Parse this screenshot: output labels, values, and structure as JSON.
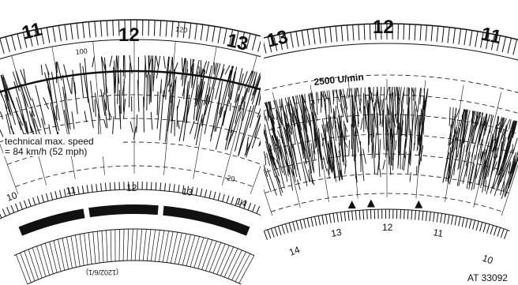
{
  "left_panel": {
    "top_hours": [
      "11",
      "12",
      "13"
    ],
    "speed_labels": [
      "100",
      "120",
      "20"
    ],
    "note": [
      "technical max. speed",
      "= 84 km/h (52 mph)"
    ],
    "lower_hours": [
      "10",
      "11",
      "12",
      "13",
      "14"
    ],
    "serial": "(1202/6/1)"
  },
  "right_panel": {
    "top_hours": [
      "13",
      "12",
      "11"
    ],
    "rpm_label": "2500 U/min",
    "lower_hours": [
      "14",
      "13",
      "12",
      "11",
      "10"
    ]
  },
  "caption": "AT 33092"
}
